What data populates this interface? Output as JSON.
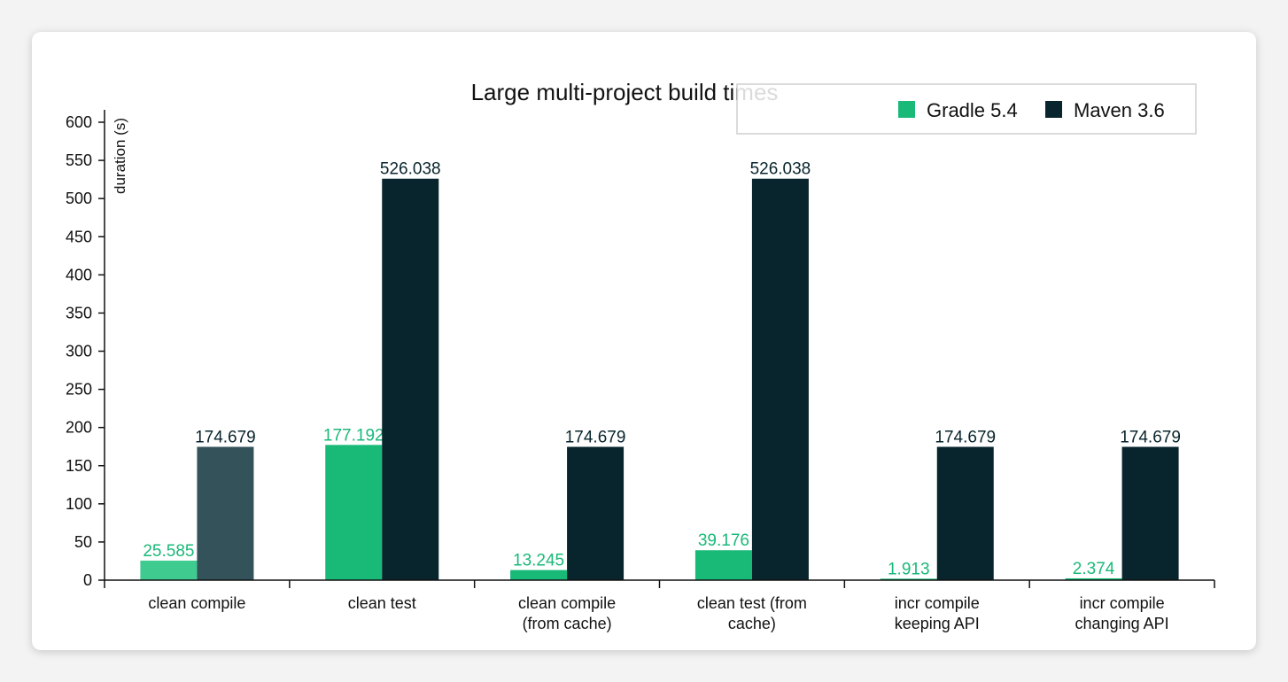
{
  "chart_data": {
    "type": "bar",
    "title": "Large multi-project build times",
    "ylabel": "duration (s)",
    "xlabel": "",
    "ylim": [
      0,
      600
    ],
    "yticks": [
      0,
      50,
      100,
      150,
      200,
      250,
      300,
      350,
      400,
      450,
      500,
      550,
      600
    ],
    "categories": [
      [
        "clean compile"
      ],
      [
        "clean test"
      ],
      [
        "clean compile",
        "(from cache)"
      ],
      [
        "clean test (from",
        "cache)"
      ],
      [
        "incr compile",
        "keeping API"
      ],
      [
        "incr compile",
        "changing API"
      ]
    ],
    "series": [
      {
        "name": "Gradle 5.4",
        "color": "#19b978",
        "values": [
          25.585,
          177.192,
          13.245,
          39.176,
          1.913,
          2.374
        ],
        "labels": [
          "25.585",
          "177.192",
          "13.245",
          "39.176",
          "1.913",
          "2.374"
        ]
      },
      {
        "name": "Maven 3.6",
        "color": "#08242c",
        "values": [
          174.679,
          526.038,
          174.679,
          526.038,
          174.679,
          174.679
        ],
        "labels": [
          "174.679",
          "526.038",
          "174.679",
          "526.038",
          "174.679",
          "174.679"
        ]
      }
    ],
    "hovered_category_index": 0,
    "hover_colors": [
      "#3fcb90",
      "#33525a"
    ],
    "legend_position": "top-right",
    "grid": false
  }
}
